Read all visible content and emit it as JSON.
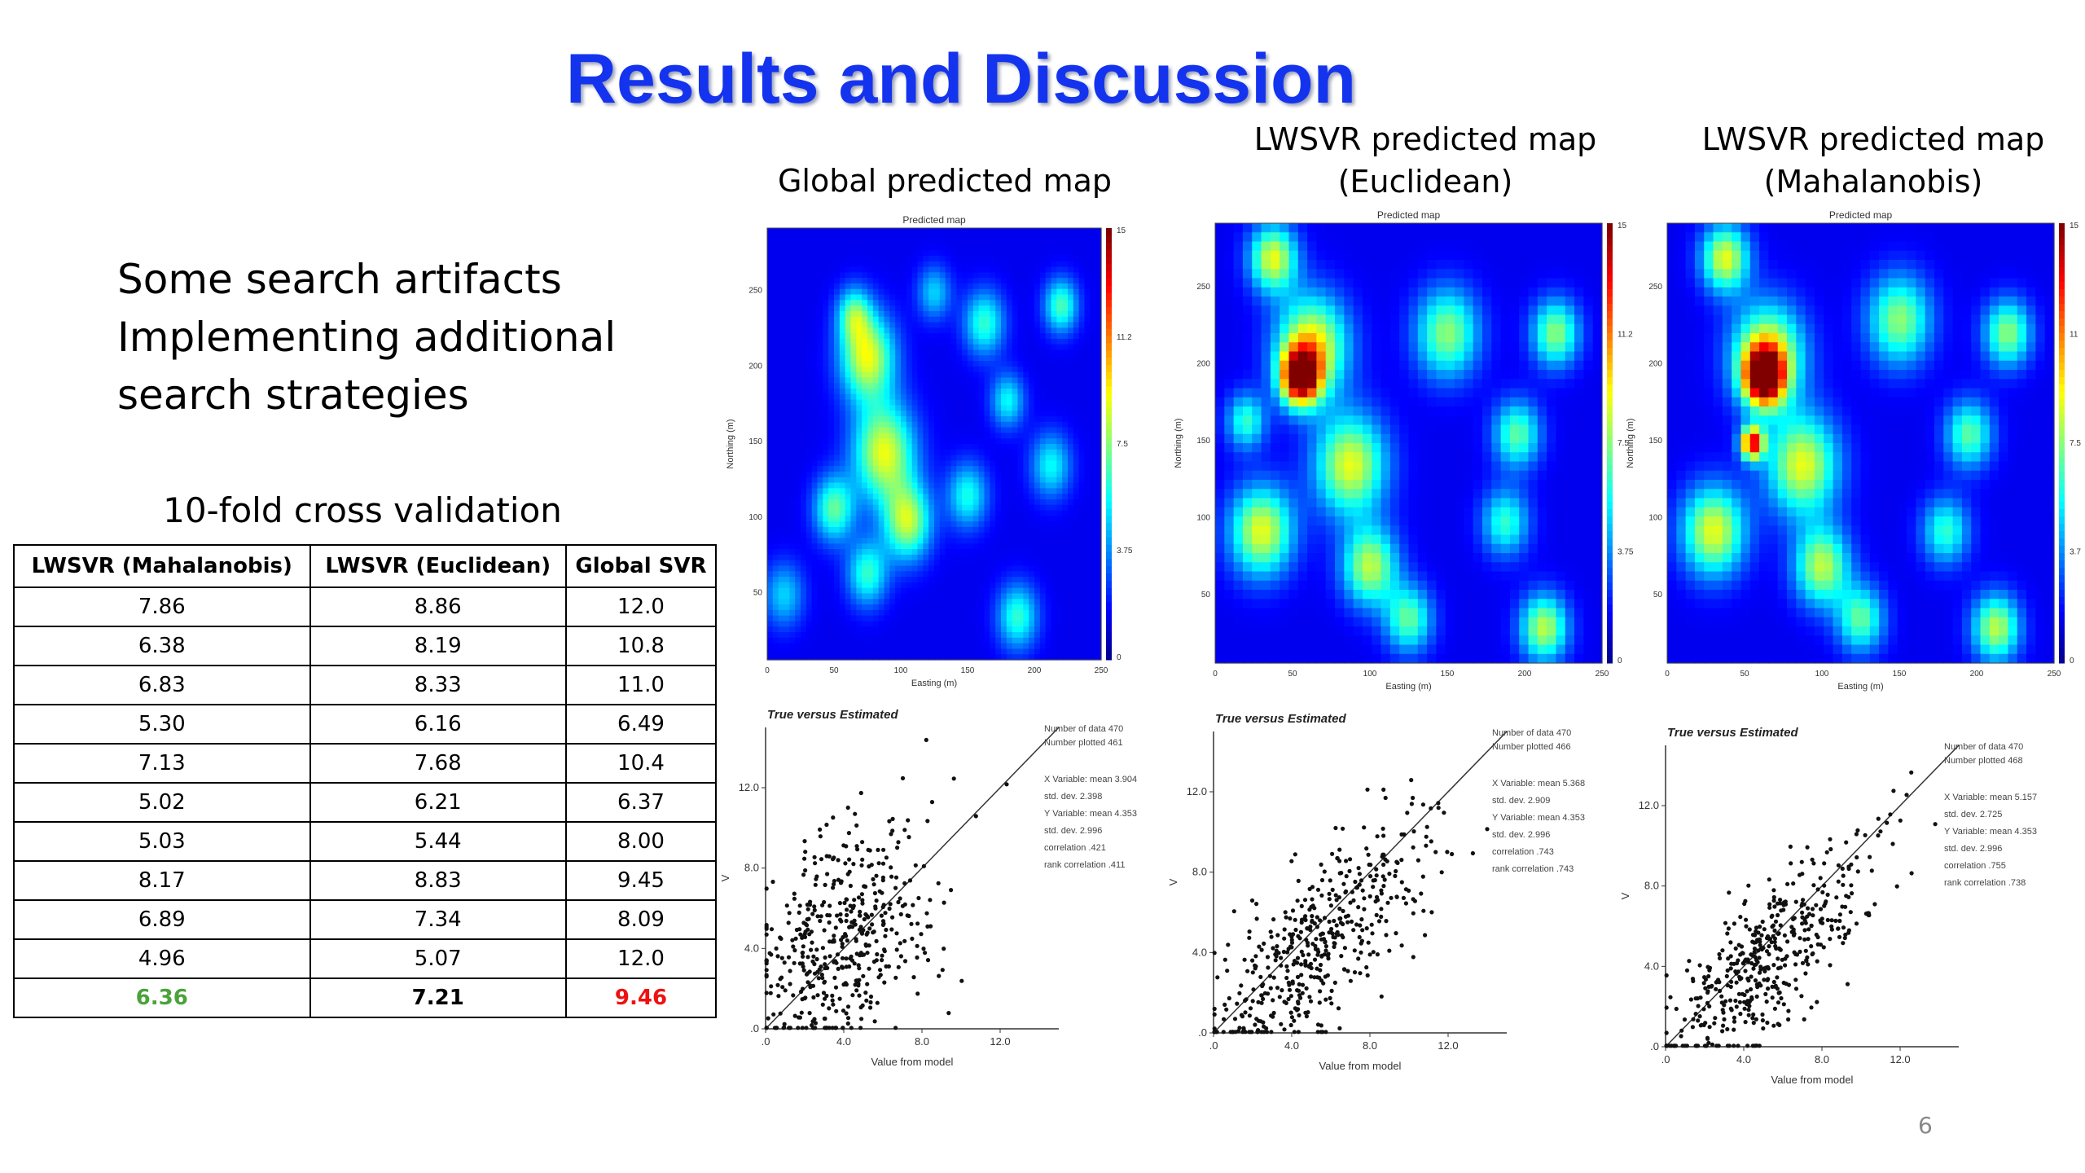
{
  "slide": {
    "title": "Results and Discussion",
    "bullets": [
      "Some search artifacts",
      "Implementing additional",
      "search strategies"
    ],
    "page_number": "6"
  },
  "maps": [
    {
      "title_lines": [
        "Global predicted map"
      ],
      "inner_title": "Predicted map",
      "xlabel": "Easting (m)",
      "ylabel": "Northing (m)",
      "yticks": [
        "250",
        "200",
        "150",
        "100",
        "50"
      ],
      "xticks": [
        "0",
        "50",
        "100",
        "150",
        "200",
        "250"
      ],
      "scale_ticks": [
        "15",
        "11.2",
        "7.5",
        "3.75",
        "0"
      ]
    },
    {
      "title_lines": [
        "LWSVR predicted map",
        "(Euclidean)"
      ],
      "inner_title": "Predicted map",
      "xlabel": "Easting (m)",
      "ylabel": "Northing (m)",
      "yticks": [
        "250",
        "200",
        "150",
        "100",
        "50"
      ],
      "xticks": [
        "0",
        "50",
        "100",
        "150",
        "200",
        "250"
      ],
      "scale_ticks": [
        "15",
        "11.2",
        "7.5",
        "3.75",
        "0"
      ]
    },
    {
      "title_lines": [
        "LWSVR predicted map",
        "(Mahalanobis)"
      ],
      "inner_title": "Predicted map",
      "xlabel": "Easting (m)",
      "ylabel": "Northing (m)",
      "yticks": [
        "250",
        "200",
        "150",
        "100",
        "50"
      ],
      "xticks": [
        "0",
        "50",
        "100",
        "150",
        "200",
        "250"
      ],
      "scale_ticks": [
        "15",
        "11",
        "7.5",
        "3.7",
        "0"
      ]
    }
  ],
  "scatters": [
    {
      "title": "True versus Estimated",
      "xlabel": "Value from model",
      "ylabel": "V",
      "stats": [
        "Number of data 470",
        "Number plotted 461",
        "X Variable: mean 3.904",
        "std. dev. 2.398",
        "Y Variable: mean 4.353",
        "std. dev. 2.996",
        "correlation .421",
        "rank correlation .411"
      ]
    },
    {
      "title": "True versus Estimated",
      "xlabel": "Value from model",
      "ylabel": "V",
      "stats": [
        "Number of data 470",
        "Number plotted 466",
        "X Variable: mean 5.368",
        "std. dev. 2.909",
        "Y Variable: mean 4.353",
        "std. dev. 2.996",
        "correlation .743",
        "rank correlation .743"
      ]
    },
    {
      "title": "True versus Estimated",
      "xlabel": "Value from model",
      "ylabel": "V",
      "stats": [
        "Number of data 470",
        "Number plotted 468",
        "X Variable: mean 5.157",
        "std. dev. 2.725",
        "Y Variable: mean 4.353",
        "std. dev. 2.996",
        "correlation .755",
        "rank correlation .738"
      ]
    }
  ],
  "chart_data": [
    {
      "type": "heatmap",
      "title": "Predicted map",
      "xlabel": "Easting (m)",
      "ylabel": "Northing (m)",
      "xlim": [
        0,
        250
      ],
      "ylim": [
        0,
        300
      ],
      "color_scale": [
        0,
        15
      ]
    },
    {
      "type": "heatmap",
      "title": "Predicted map",
      "xlabel": "Easting (m)",
      "ylabel": "Northing (m)",
      "xlim": [
        0,
        250
      ],
      "ylim": [
        0,
        300
      ],
      "color_scale": [
        0,
        15
      ]
    },
    {
      "type": "heatmap",
      "title": "Predicted map",
      "xlabel": "Easting (m)",
      "ylabel": "Northing (m)",
      "xlim": [
        0,
        250
      ],
      "ylim": [
        0,
        300
      ],
      "color_scale": [
        0,
        15
      ]
    },
    {
      "type": "scatter",
      "title": "True versus Estimated",
      "xlabel": "Value from model",
      "ylabel": "V",
      "xlim": [
        0,
        15
      ],
      "ylim": [
        0,
        15
      ],
      "xticks": [
        0,
        4,
        8,
        12
      ],
      "yticks": [
        0,
        4,
        8,
        12
      ],
      "n_plotted": 461,
      "x_mean": 3.904,
      "x_std": 2.398,
      "y_mean": 4.353,
      "y_std": 2.996,
      "correlation": 0.421
    },
    {
      "type": "scatter",
      "title": "True versus Estimated",
      "xlabel": "Value from model",
      "ylabel": "V",
      "xlim": [
        0,
        15
      ],
      "ylim": [
        0,
        15
      ],
      "xticks": [
        0,
        4,
        8,
        12
      ],
      "yticks": [
        0,
        4,
        8,
        12
      ],
      "n_plotted": 466,
      "x_mean": 5.368,
      "x_std": 2.909,
      "y_mean": 4.353,
      "y_std": 2.996,
      "correlation": 0.743
    },
    {
      "type": "scatter",
      "title": "True versus Estimated",
      "xlabel": "Value from model",
      "ylabel": "V",
      "xlim": [
        0,
        15
      ],
      "ylim": [
        0,
        15
      ],
      "xticks": [
        0,
        4,
        8,
        12
      ],
      "yticks": [
        0,
        4,
        8,
        12
      ],
      "n_plotted": 468,
      "x_mean": 5.157,
      "x_std": 2.725,
      "y_mean": 4.353,
      "y_std": 2.996,
      "correlation": 0.755
    },
    {
      "type": "table",
      "title": "10-fold cross validation",
      "columns": [
        "LWSVR (Mahalanobis)",
        "LWSVR (Euclidean)",
        "Global SVR"
      ],
      "rows": [
        [
          "7.86",
          "8.86",
          "12.0"
        ],
        [
          "6.38",
          "8.19",
          "10.8"
        ],
        [
          "6.83",
          "8.33",
          "11.0"
        ],
        [
          "5.30",
          "6.16",
          "6.49"
        ],
        [
          "7.13",
          "7.68",
          "10.4"
        ],
        [
          "5.02",
          "6.21",
          "6.37"
        ],
        [
          "5.03",
          "5.44",
          "8.00"
        ],
        [
          "8.17",
          "8.83",
          "9.45"
        ],
        [
          "6.89",
          "7.34",
          "8.09"
        ],
        [
          "4.96",
          "5.07",
          "12.0"
        ]
      ],
      "summary_row": [
        "6.36",
        "7.21",
        "9.46"
      ]
    }
  ],
  "colors": {
    "title": "#1433ee",
    "best": "#4aa33a",
    "worst": "#ee1111"
  }
}
